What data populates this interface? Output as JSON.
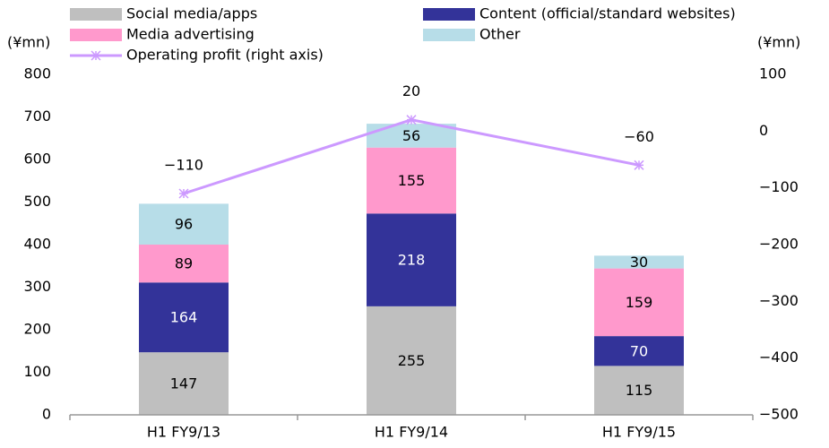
{
  "chart_data": {
    "type": "bar",
    "stacked": true,
    "categories": [
      "H1 FY9/13",
      "H1 FY9/14",
      "H1 FY9/15"
    ],
    "y_label": "(¥mn)",
    "y2_label": "(¥mn)",
    "series": [
      {
        "name": "Social media/apps",
        "color": "#bfbfbf",
        "values": [
          147,
          255,
          115
        ]
      },
      {
        "name": "Content (official/standard websites)",
        "color": "#333399",
        "values": [
          164,
          218,
          70
        ],
        "label_color": "#ffffff"
      },
      {
        "name": "Media advertising",
        "color": "#ff99cc",
        "values": [
          89,
          155,
          159
        ]
      },
      {
        "name": "Other",
        "color": "#b7dde8",
        "values": [
          96,
          56,
          30
        ]
      },
      {
        "name": "Operating profit (right axis)",
        "type": "line",
        "axis": "y2",
        "color": "#cc99ff",
        "values": [
          -110,
          20,
          -60
        ],
        "value_labels": [
          "−110",
          "20",
          "−60"
        ]
      }
    ],
    "ylim": [
      0,
      800
    ],
    "yticks": [
      0,
      100,
      200,
      300,
      400,
      500,
      600,
      700,
      800
    ],
    "y2lim": [
      -500,
      100
    ],
    "y2ticks": [
      {
        "value": -500,
        "label": "−500"
      },
      {
        "value": -400,
        "label": "−400"
      },
      {
        "value": -300,
        "label": "−300"
      },
      {
        "value": -200,
        "label": "−200"
      },
      {
        "value": -100,
        "label": "−100"
      },
      0,
      100
    ],
    "grid": false
  }
}
